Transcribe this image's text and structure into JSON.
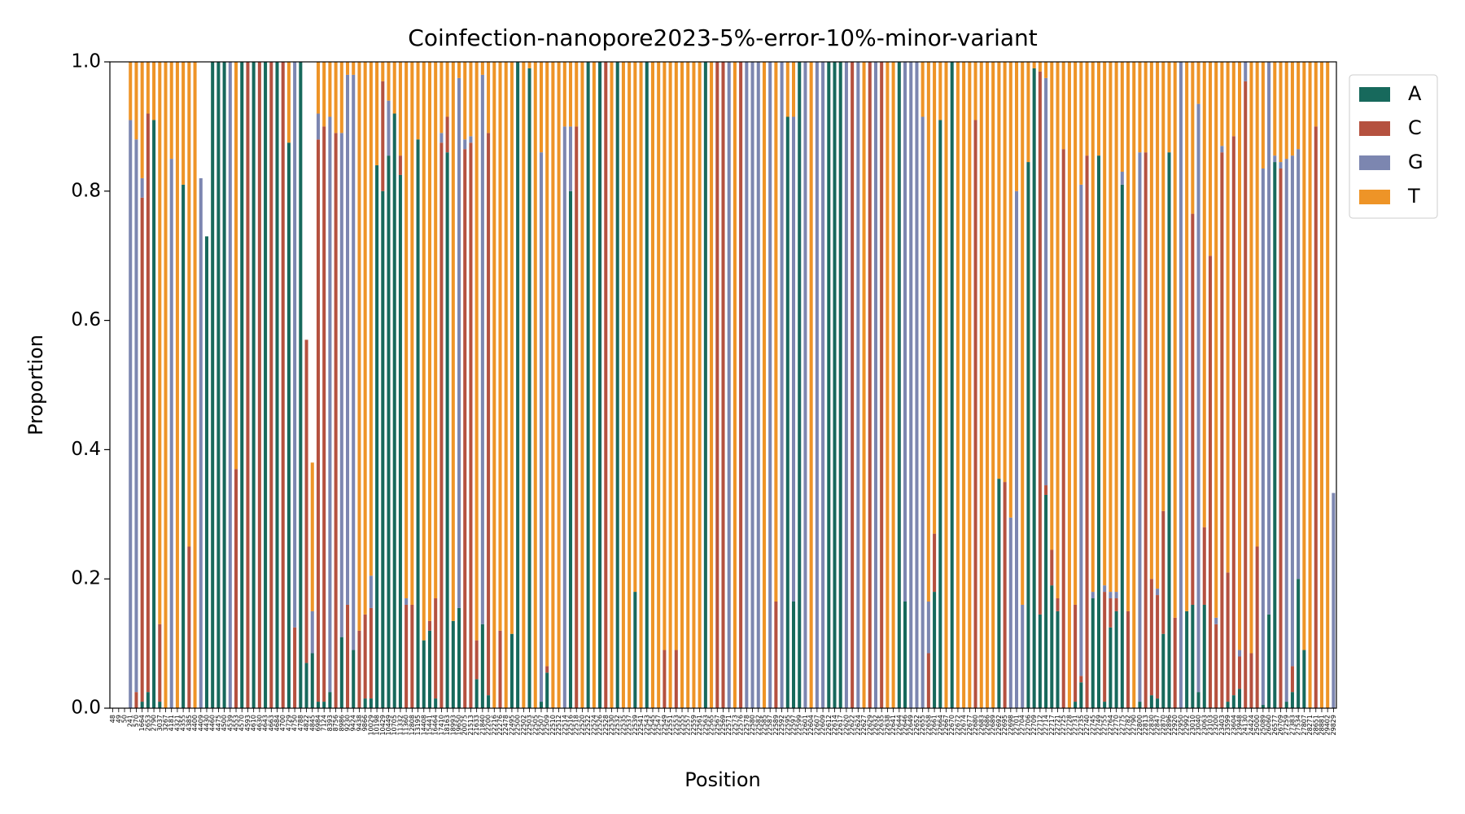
{
  "chart_data": {
    "type": "stacked_bar",
    "title": "Coinfection-nanopore2023-5%-error-10%-minor-variant",
    "x_label": "Position",
    "y_label": "Proportion",
    "ylim": [
      0,
      1
    ],
    "yticks": [
      {
        "value": 0,
        "label": "0.0"
      },
      0.2,
      0.4,
      0.6,
      0.8,
      {
        "value": 1,
        "label": "1.0"
      }
    ],
    "grid": false,
    "legend": "outside upper right",
    "categories": [
      48,
      49,
      50,
      241,
      570,
      1664,
      2653,
      2790,
      3037,
      3267,
      4181,
      4321,
      4355,
      4385,
      4400,
      4409,
      4430,
      4460,
      4475,
      4500,
      4539,
      4553,
      4570,
      4593,
      4610,
      4630,
      4643,
      4663,
      4684,
      4700,
      4729,
      4750,
      4788,
      4822,
      4845,
      6984,
      7124,
      8393,
      8756,
      8986,
      9230,
      9424,
      9438,
      9866,
      10029,
      10198,
      10429,
      10449,
      10705,
      11332,
      11360,
      12808,
      13195,
      14408,
      15441,
      16464,
      17410,
      18163,
      18993,
      19650,
      20075,
      21513,
      21633,
      21840,
      22200,
      22216,
      22276,
      22478,
      22495,
      22500,
      22502,
      22503,
      22505,
      22507,
      22509,
      22510,
      22512,
      22514,
      22516,
      22518,
      22520,
      22522,
      22524,
      22526,
      22528,
      22530,
      22532,
      22535,
      22537,
      22539,
      22541,
      22543,
      22545,
      22547,
      22549,
      22551,
      22553,
      22555,
      22557,
      22559,
      22561,
      22563,
      22565,
      22567,
      22569,
      22571,
      22573,
      22576,
      22578,
      22580,
      22582,
      22585,
      22587,
      22589,
      22592,
      22595,
      22597,
      22599,
      22601,
      22604,
      22607,
      22609,
      22612,
      22614,
      22617,
      22620,
      22622,
      22624,
      22627,
      22629,
      22632,
      22635,
      22638,
      22641,
      22644,
      22646,
      22649,
      22652,
      22655,
      22658,
      22661,
      22664,
      22667,
      22670,
      22672,
      22674,
      22677,
      22680,
      22683,
      22686,
      22689,
      22692,
      22695,
      22698,
      22701,
      22704,
      22706,
      22709,
      22712,
      22714,
      22717,
      22721,
      22725,
      22728,
      22731,
      22735,
      22740,
      22745,
      22749,
      22755,
      22764,
      22770,
      22775,
      22782,
      22790,
      22800,
      22813,
      22830,
      22847,
      22870,
      22896,
      22920,
      22950,
      22992,
      23010,
      23040,
      23063,
      23103,
      23200,
      23403,
      23599,
      23604,
      23948,
      24130,
      24424,
      25000,
      25089,
      26060,
      26577,
      26709,
      27259,
      27383,
      27534,
      27807,
      28271,
      28651,
      28881,
      29402,
      29829
    ],
    "series": [
      {
        "name": "A",
        "color": "#17695c",
        "values": [
          0,
          0,
          0,
          0,
          0,
          0.01,
          0.025,
          0.91,
          0.01,
          0,
          0,
          0,
          0.81,
          0,
          0,
          0,
          0.73,
          1,
          1,
          1,
          0,
          0,
          1,
          0,
          1,
          0,
          1,
          0,
          1,
          0,
          0.875,
          0,
          1,
          0.07,
          0.085,
          0.01,
          0.01,
          0.025,
          0,
          0.11,
          0,
          0.09,
          0,
          0.015,
          0.015,
          0.84,
          0.8,
          0.855,
          0.92,
          0.825,
          0,
          0,
          0.88,
          0.105,
          0.12,
          0.015,
          0,
          0.86,
          0.135,
          0.155,
          0,
          0,
          0.045,
          0.13,
          0.02,
          0,
          0,
          0,
          0.115,
          1,
          0,
          0.99,
          0,
          0.01,
          0.055,
          0,
          0,
          0,
          0.8,
          0,
          0,
          1,
          0,
          1,
          0,
          0,
          1,
          0,
          0,
          0.18,
          0,
          1,
          0,
          0,
          0,
          0,
          0,
          0,
          0,
          0,
          0,
          1,
          0,
          0,
          0,
          0,
          0,
          0,
          0,
          0,
          0,
          0,
          0,
          0,
          0,
          0.915,
          0.165,
          1,
          0,
          0,
          0,
          0,
          1,
          1,
          1,
          0,
          0,
          0,
          0,
          0,
          0,
          0,
          0,
          0,
          1,
          0.165,
          0,
          0,
          0,
          0,
          0.18,
          0.91,
          0,
          1,
          0,
          0,
          0,
          0,
          0,
          0,
          0,
          0.355,
          0,
          0,
          0,
          0,
          0.845,
          0.99,
          0.145,
          0.33,
          0.19,
          0.15,
          0,
          0,
          0.01,
          0.04,
          0,
          0.17,
          0.855,
          0.01,
          0.125,
          0.15,
          0.81,
          0,
          0,
          0.01,
          0,
          0.02,
          0.015,
          0.115,
          0.86,
          0,
          0,
          0.15,
          0.16,
          0.025,
          0.16,
          0,
          0,
          0,
          0.01,
          0.02,
          0.03,
          0,
          0,
          0,
          0.005,
          0.145,
          0.845,
          0,
          0.01,
          0.025,
          0.2,
          0.09,
          0,
          0,
          0,
          0,
          0
        ]
      },
      {
        "name": "C",
        "color": "#b5513f",
        "values": [
          0,
          0,
          0,
          0,
          0.025,
          0.78,
          0.895,
          0,
          0.12,
          0,
          0,
          0,
          0,
          0.25,
          0,
          0,
          0,
          0,
          0,
          0,
          0,
          0.37,
          0,
          1,
          0,
          1,
          0,
          1,
          0,
          1,
          0,
          0.125,
          0,
          0.5,
          0,
          0.87,
          0.89,
          0,
          0.89,
          0,
          0.16,
          0,
          0.12,
          0.13,
          0.14,
          0,
          0.17,
          0,
          0,
          0.03,
          0.16,
          0.16,
          0,
          0,
          0.015,
          0.155,
          0.875,
          0.055,
          0,
          0,
          0.865,
          0.875,
          0.06,
          0,
          0.87,
          0,
          0.12,
          0,
          0,
          0,
          0,
          0,
          0,
          0,
          0.01,
          0,
          0,
          0,
          0,
          0.9,
          0,
          0,
          0,
          0,
          1,
          0,
          0,
          0,
          0,
          0,
          0,
          0,
          0,
          0,
          0.09,
          0,
          0.09,
          0,
          0,
          0,
          0,
          0,
          0,
          1,
          1,
          0,
          0,
          1,
          0,
          0,
          0,
          0,
          0,
          0.165,
          0,
          0,
          0,
          0,
          0,
          0,
          0,
          0,
          0,
          0,
          0,
          0,
          1,
          0,
          0,
          1,
          0,
          1,
          0,
          0,
          0,
          0,
          0,
          0,
          0,
          0.085,
          0.09,
          0,
          0,
          0,
          0,
          0,
          0,
          0.91,
          0,
          0,
          0,
          0,
          0.35,
          0,
          0,
          0,
          0,
          0,
          0.84,
          0.015,
          0.055,
          0.02,
          0.865,
          0,
          0.15,
          0.01,
          0.855,
          0,
          0,
          0.17,
          0.045,
          0.02,
          0,
          0.15,
          0,
          0,
          0.86,
          0.18,
          0.16,
          0.19,
          0,
          0.14,
          0,
          0,
          0.605,
          0,
          0.12,
          0.7,
          0.13,
          0.86,
          0.2,
          0.865,
          0.05,
          0.97,
          0.085,
          0.25,
          0,
          0,
          0,
          0.835,
          0,
          0.04,
          0,
          0,
          0,
          0.9,
          0,
          0,
          0
        ]
      },
      {
        "name": "G",
        "color": "#7c86b0",
        "values": [
          0,
          0,
          0,
          0.91,
          0.855,
          0.03,
          0,
          0,
          0,
          0,
          0.85,
          0,
          0,
          0,
          0,
          0.82,
          0,
          0,
          0,
          0,
          1,
          0,
          0,
          0,
          0,
          0,
          0,
          0,
          0,
          0,
          0,
          0.875,
          0,
          0,
          0.065,
          0.04,
          0,
          0.89,
          0,
          0.78,
          0.82,
          0.89,
          0,
          0,
          0.05,
          0,
          0,
          0.085,
          0,
          0,
          0.01,
          0,
          0,
          0,
          0,
          0,
          0.015,
          0,
          0,
          0.82,
          0.015,
          0.01,
          0,
          0.85,
          0,
          0,
          0,
          0,
          0,
          0,
          0,
          0,
          0,
          0.85,
          0,
          0,
          0,
          0.9,
          0.1,
          0,
          0,
          0,
          0,
          0,
          0,
          0,
          0,
          0,
          0,
          0,
          0,
          0,
          0,
          0,
          0,
          0,
          0,
          0,
          0,
          0,
          0,
          0,
          0,
          0,
          0,
          1,
          0,
          0,
          1,
          1,
          1,
          0,
          1,
          0,
          1,
          0,
          0.75,
          0,
          1,
          0,
          1,
          1,
          0,
          0,
          0,
          1,
          0,
          1,
          0,
          0,
          1,
          0,
          0,
          0,
          0,
          0.835,
          1,
          1,
          0.915,
          0.08,
          0,
          0,
          0,
          0,
          0,
          0,
          0,
          0,
          0,
          0,
          0,
          0,
          0,
          0.295,
          0.8,
          0.16,
          0,
          0,
          0,
          0.63,
          0,
          0,
          0,
          0,
          0,
          0.76,
          0,
          0.01,
          0,
          0.01,
          0.01,
          0.01,
          0.02,
          0,
          0,
          0.85,
          0,
          0,
          0.01,
          0,
          0,
          0,
          1,
          0,
          0,
          0.91,
          0,
          0,
          0.01,
          0.01,
          0,
          0,
          0.01,
          0.03,
          0,
          0,
          0.83,
          0.855,
          0.01,
          0.01,
          0.84,
          0.79,
          0.665,
          0,
          0,
          0,
          0,
          0,
          0.333
        ]
      },
      {
        "name": "T",
        "color": "#ee9427",
        "values": [
          0,
          0,
          0,
          0.09,
          0.12,
          0.18,
          0.08,
          0.09,
          0.87,
          1,
          0.15,
          1,
          0.19,
          0.75,
          1,
          0,
          0,
          0,
          0,
          0,
          0,
          0.63,
          0,
          0,
          0,
          0,
          0,
          0,
          0,
          0,
          0.125,
          0,
          0,
          0,
          0.23,
          0.08,
          0.1,
          0.085,
          0.11,
          0.11,
          0.02,
          0.02,
          0.88,
          0.855,
          0.795,
          0.16,
          0.03,
          0.06,
          0.08,
          0.145,
          0.83,
          0.84,
          0.12,
          0.895,
          0.865,
          0.83,
          0.11,
          0.085,
          0.865,
          0.025,
          0.12,
          0.115,
          0.895,
          0.02,
          0.11,
          1,
          0.88,
          1,
          0.885,
          0,
          1,
          0.01,
          1,
          0.14,
          0.935,
          1,
          1,
          0.1,
          0.1,
          0.1,
          1,
          0,
          1,
          0,
          0,
          1,
          0,
          1,
          1,
          0.82,
          1,
          0,
          1,
          1,
          0.91,
          1,
          0.91,
          1,
          1,
          1,
          1,
          0,
          1,
          0,
          0,
          0,
          1,
          0,
          0,
          0,
          0,
          1,
          0,
          0.835,
          0,
          0.085,
          0.085,
          0,
          0,
          1,
          0,
          0,
          0,
          0,
          0,
          0,
          0,
          0,
          1,
          0,
          0,
          0,
          1,
          1,
          0,
          0,
          0,
          0,
          0.085,
          0.835,
          0.73,
          0.09,
          1,
          0,
          1,
          1,
          1,
          0.09,
          1,
          1,
          1,
          0.645,
          0.65,
          0.705,
          0.2,
          0.84,
          0.155,
          0.01,
          0.015,
          0.025,
          0.755,
          0.83,
          0.135,
          1,
          0.84,
          0.19,
          0.145,
          0.82,
          0.145,
          0.81,
          0.82,
          0.82,
          0.17,
          0.85,
          1,
          0.14,
          0.14,
          0.8,
          0.815,
          0.695,
          0.14,
          0.86,
          0,
          0.85,
          0.235,
          0.065,
          0.72,
          0.3,
          0.86,
          0.13,
          0.79,
          0.115,
          0.91,
          0,
          0.915,
          0.75,
          0.165,
          0,
          0.145,
          0.155,
          0.15,
          0.145,
          0.135,
          0.91,
          1,
          0.1,
          1,
          1,
          0
        ]
      }
    ]
  }
}
